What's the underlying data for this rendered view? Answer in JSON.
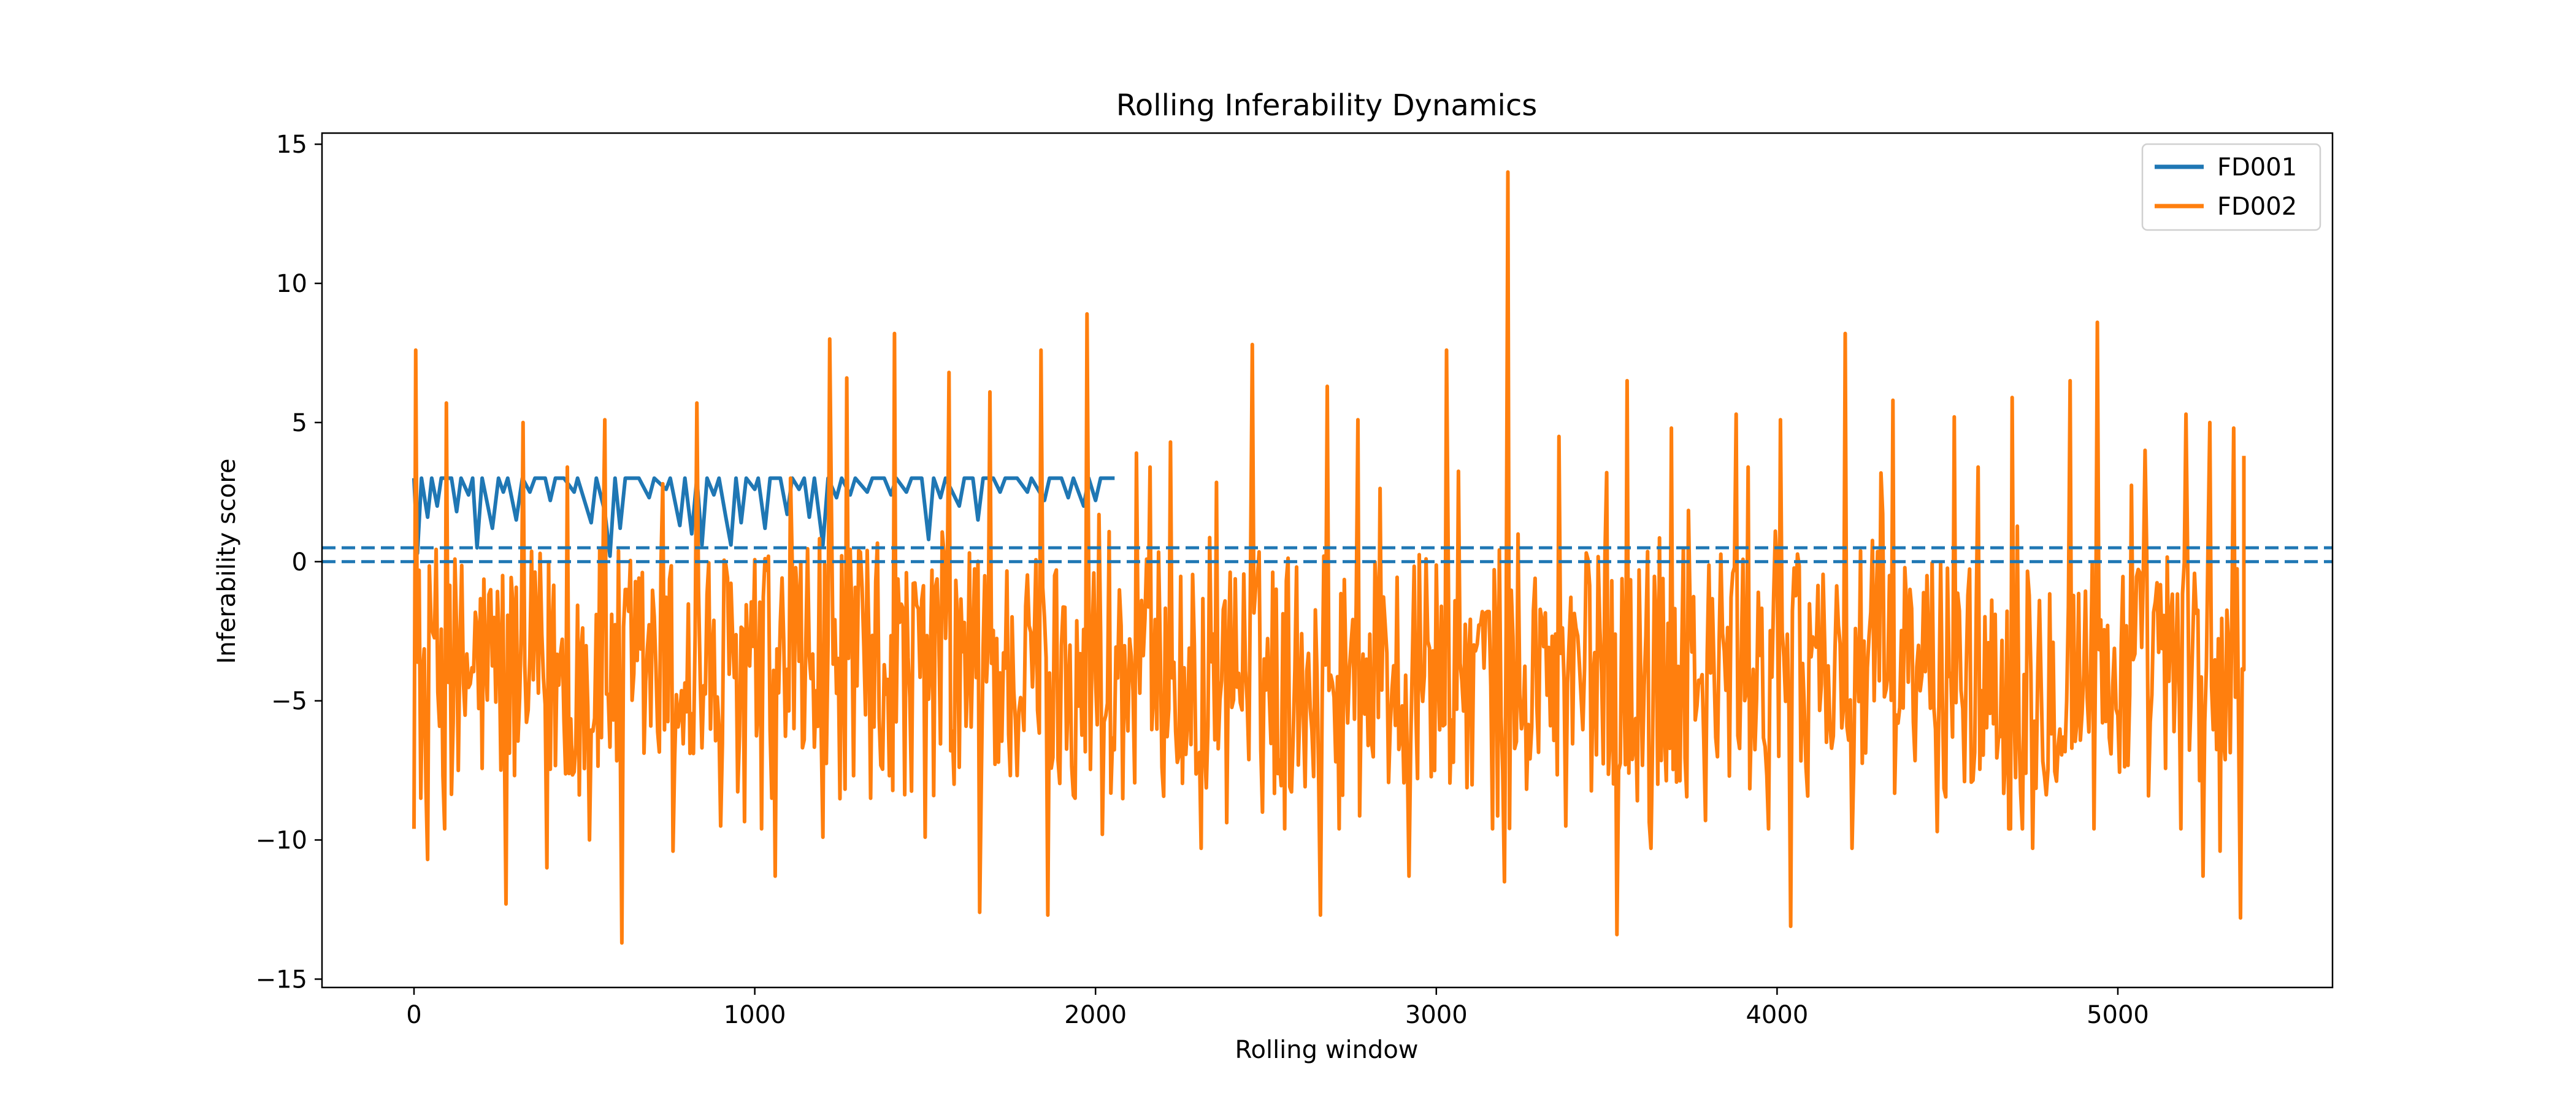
{
  "chart_data": {
    "type": "line",
    "title": "Rolling Inferability Dynamics",
    "xlabel": "Rolling window",
    "ylabel": "Inferability score",
    "xlim": [
      -270,
      5630
    ],
    "ylim": [
      -15.3,
      15.4
    ],
    "xticks": [
      0,
      1000,
      2000,
      3000,
      4000,
      5000
    ],
    "xtick_labels": [
      "0",
      "1000",
      "2000",
      "3000",
      "4000",
      "5000"
    ],
    "yticks": [
      15,
      10,
      5,
      0,
      -5,
      -10,
      -15
    ],
    "ytick_labels": [
      "15",
      "10",
      "5",
      "0",
      "−5",
      "−10",
      "−15"
    ],
    "grid": false,
    "legend_position": "top-right",
    "reference_lines": [
      {
        "y": 0.5,
        "style": "dashed",
        "color": "#1f77b4"
      },
      {
        "y": 0.0,
        "style": "dashed",
        "color": "#1f77b4"
      }
    ],
    "series": [
      {
        "name": "FD001",
        "color": "#1f77b4",
        "x_range": [
          0,
          2056
        ],
        "baseline": 3.0,
        "points": [
          [
            0,
            3.0
          ],
          [
            10,
            0.3
          ],
          [
            22,
            3.0
          ],
          [
            40,
            1.6
          ],
          [
            52,
            3.0
          ],
          [
            68,
            2.0
          ],
          [
            80,
            3.0
          ],
          [
            110,
            3.0
          ],
          [
            125,
            1.8
          ],
          [
            138,
            3.0
          ],
          [
            160,
            2.4
          ],
          [
            172,
            3.0
          ],
          [
            185,
            0.5
          ],
          [
            200,
            3.0
          ],
          [
            230,
            1.2
          ],
          [
            248,
            3.0
          ],
          [
            262,
            2.5
          ],
          [
            275,
            3.0
          ],
          [
            300,
            1.5
          ],
          [
            318,
            3.0
          ],
          [
            340,
            2.5
          ],
          [
            355,
            3.0
          ],
          [
            385,
            3.0
          ],
          [
            400,
            2.2
          ],
          [
            415,
            3.0
          ],
          [
            440,
            3.0
          ],
          [
            470,
            2.5
          ],
          [
            480,
            3.0
          ],
          [
            520,
            1.4
          ],
          [
            535,
            3.0
          ],
          [
            560,
            1.8
          ],
          [
            575,
            0.2
          ],
          [
            590,
            3.0
          ],
          [
            605,
            1.2
          ],
          [
            620,
            3.0
          ],
          [
            660,
            3.0
          ],
          [
            690,
            2.3
          ],
          [
            705,
            3.0
          ],
          [
            740,
            2.6
          ],
          [
            752,
            3.0
          ],
          [
            780,
            1.3
          ],
          [
            795,
            3.0
          ],
          [
            815,
            1.0
          ],
          [
            830,
            3.0
          ],
          [
            845,
            0.6
          ],
          [
            860,
            3.0
          ],
          [
            880,
            2.4
          ],
          [
            895,
            3.0
          ],
          [
            915,
            1.6
          ],
          [
            930,
            0.6
          ],
          [
            945,
            3.0
          ],
          [
            960,
            1.4
          ],
          [
            975,
            3.0
          ],
          [
            1000,
            2.6
          ],
          [
            1010,
            3.0
          ],
          [
            1030,
            1.2
          ],
          [
            1045,
            3.0
          ],
          [
            1075,
            3.0
          ],
          [
            1095,
            1.7
          ],
          [
            1110,
            3.0
          ],
          [
            1130,
            2.6
          ],
          [
            1145,
            3.0
          ],
          [
            1160,
            1.6
          ],
          [
            1175,
            3.0
          ],
          [
            1200,
            0.6
          ],
          [
            1215,
            3.0
          ],
          [
            1240,
            2.3
          ],
          [
            1255,
            3.0
          ],
          [
            1280,
            2.4
          ],
          [
            1295,
            3.0
          ],
          [
            1330,
            2.5
          ],
          [
            1345,
            3.0
          ],
          [
            1380,
            3.0
          ],
          [
            1400,
            2.4
          ],
          [
            1415,
            3.0
          ],
          [
            1445,
            2.5
          ],
          [
            1460,
            3.0
          ],
          [
            1490,
            3.0
          ],
          [
            1510,
            0.8
          ],
          [
            1525,
            3.0
          ],
          [
            1545,
            2.3
          ],
          [
            1560,
            3.0
          ],
          [
            1600,
            2.0
          ],
          [
            1615,
            3.0
          ],
          [
            1640,
            3.0
          ],
          [
            1655,
            1.5
          ],
          [
            1670,
            3.0
          ],
          [
            1700,
            3.0
          ],
          [
            1720,
            2.5
          ],
          [
            1735,
            3.0
          ],
          [
            1770,
            3.0
          ],
          [
            1800,
            2.5
          ],
          [
            1812,
            3.0
          ],
          [
            1850,
            2.2
          ],
          [
            1865,
            3.0
          ],
          [
            1900,
            3.0
          ],
          [
            1920,
            2.3
          ],
          [
            1935,
            3.0
          ],
          [
            1965,
            2.0
          ],
          [
            1980,
            3.0
          ],
          [
            2000,
            2.2
          ],
          [
            2015,
            3.0
          ],
          [
            2056,
            3.0
          ]
        ]
      },
      {
        "name": "FD002",
        "color": "#ff7f0e",
        "x_range": [
          0,
          5370
        ],
        "mean": -4.0,
        "peaks": [
          [
            5,
            7.6
          ],
          [
            95,
            5.7
          ],
          [
            320,
            5.0
          ],
          [
            450,
            3.4
          ],
          [
            560,
            5.1
          ],
          [
            730,
            2.8
          ],
          [
            830,
            5.7
          ],
          [
            1060,
            4.6
          ],
          [
            1105,
            3.0
          ],
          [
            1220,
            8.0
          ],
          [
            1270,
            6.6
          ],
          [
            1410,
            8.2
          ],
          [
            1570,
            6.8
          ],
          [
            1690,
            6.1
          ],
          [
            1840,
            7.6
          ],
          [
            1975,
            8.9
          ],
          [
            2120,
            3.9
          ],
          [
            2220,
            4.3
          ],
          [
            2460,
            7.8
          ],
          [
            2680,
            6.3
          ],
          [
            2770,
            5.1
          ],
          [
            2920,
            5.8
          ],
          [
            3030,
            7.6
          ],
          [
            3210,
            14.0
          ],
          [
            3360,
            4.5
          ],
          [
            3500,
            3.2
          ],
          [
            3560,
            6.5
          ],
          [
            3690,
            4.8
          ],
          [
            3880,
            5.3
          ],
          [
            4010,
            5.1
          ],
          [
            4200,
            8.2
          ],
          [
            4340,
            5.8
          ],
          [
            4520,
            5.2
          ],
          [
            4690,
            5.9
          ],
          [
            4860,
            6.5
          ],
          [
            4940,
            8.6
          ],
          [
            5080,
            4.0
          ],
          [
            5200,
            5.3
          ],
          [
            5270,
            5.0
          ],
          [
            5340,
            4.8
          ]
        ],
        "troughs": [
          [
            20,
            -8.5
          ],
          [
            40,
            -10.7
          ],
          [
            130,
            -7.5
          ],
          [
            270,
            -12.3
          ],
          [
            390,
            -11.0
          ],
          [
            515,
            -10.0
          ],
          [
            610,
            -13.7
          ],
          [
            760,
            -10.4
          ],
          [
            900,
            -9.5
          ],
          [
            1060,
            -11.3
          ],
          [
            1200,
            -9.9
          ],
          [
            1340,
            -8.5
          ],
          [
            1500,
            -9.9
          ],
          [
            1660,
            -12.6
          ],
          [
            1860,
            -12.7
          ],
          [
            2020,
            -9.8
          ],
          [
            2310,
            -10.3
          ],
          [
            2660,
            -12.7
          ],
          [
            2920,
            -11.3
          ],
          [
            3200,
            -11.5
          ],
          [
            3380,
            -9.5
          ],
          [
            3530,
            -13.4
          ],
          [
            3630,
            -10.3
          ],
          [
            3790,
            -9.3
          ],
          [
            4040,
            -13.1
          ],
          [
            4220,
            -10.3
          ],
          [
            4470,
            -9.7
          ],
          [
            4750,
            -10.3
          ],
          [
            4930,
            -9.6
          ],
          [
            5250,
            -11.3
          ],
          [
            5300,
            -10.4
          ],
          [
            5360,
            -12.8
          ]
        ],
        "end_value": 3.8
      }
    ]
  }
}
